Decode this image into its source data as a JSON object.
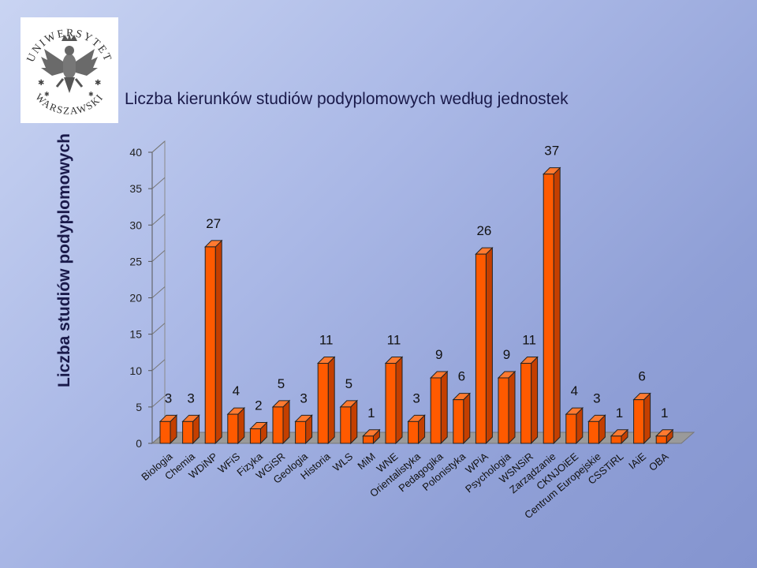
{
  "side_label": "Liczba studiów podyplomowych",
  "logo": {
    "text_top": "UNIWERSYTET",
    "text_bottom": "WARSZAWSKI"
  },
  "chart_data": {
    "type": "bar",
    "title": "Liczba kierunków studiów podyplomowych według jednostek",
    "xlabel": "",
    "ylabel": "",
    "ylim": [
      0,
      40
    ],
    "yticks": [
      0,
      5,
      10,
      15,
      20,
      25,
      30,
      35,
      40
    ],
    "grid": false,
    "bar_color": "#ff5a00",
    "categories": [
      "Biologia",
      "Chemia",
      "WDiNP",
      "WFiS",
      "Fizyka",
      "WGiSR",
      "Geologia",
      "Historia",
      "WLS",
      "MiM",
      "WNE",
      "Orientalistyka",
      "Pedagogika",
      "Polonistyka",
      "WPiA",
      "Psychologia",
      "WSNSiR",
      "Zarządzanie",
      "CKNJOiEE",
      "Centrum Europejskie",
      "CSSTiRL",
      "IAiE",
      "OBA"
    ],
    "values": [
      3,
      3,
      27,
      4,
      2,
      5,
      3,
      11,
      5,
      1,
      11,
      3,
      9,
      6,
      26,
      9,
      11,
      37,
      4,
      3,
      1,
      6,
      1
    ]
  }
}
